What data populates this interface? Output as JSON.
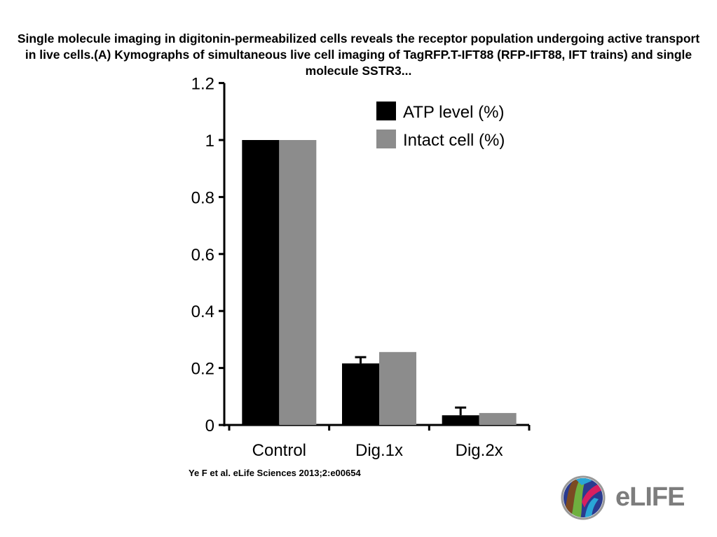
{
  "title": "Single molecule imaging in digitonin-permeabilized cells reveals the receptor population undergoing active transport in live cells.(A) Kymographs of simultaneous live cell imaging of TagRFP.T-IFT88 (RFP-IFT88, IFT trains) and single molecule SSTR3...",
  "citation": "Ye F et al. eLife Sciences 2013;2:e00654",
  "logo": {
    "text": "eLIFE"
  },
  "chart_data": {
    "type": "bar",
    "title": "",
    "xlabel": "",
    "ylabel": "",
    "ylim": [
      0,
      1.2
    ],
    "yticks": [
      "0",
      "0.2",
      "0.4",
      "0.6",
      "0.8",
      "1",
      "1.2"
    ],
    "categories": [
      "Control",
      "Dig.1x",
      "Dig.2x"
    ],
    "legend_position": "top-right",
    "series": [
      {
        "name": "ATP level (%)",
        "color": "#000000",
        "values": [
          1.0,
          0.216,
          0.034
        ],
        "errors": [
          0,
          0.022,
          0.027
        ]
      },
      {
        "name": "Intact cell (%)",
        "color": "#8c8c8c",
        "values": [
          1.0,
          0.256,
          0.042
        ],
        "errors": [
          0,
          0,
          0
        ]
      }
    ]
  }
}
